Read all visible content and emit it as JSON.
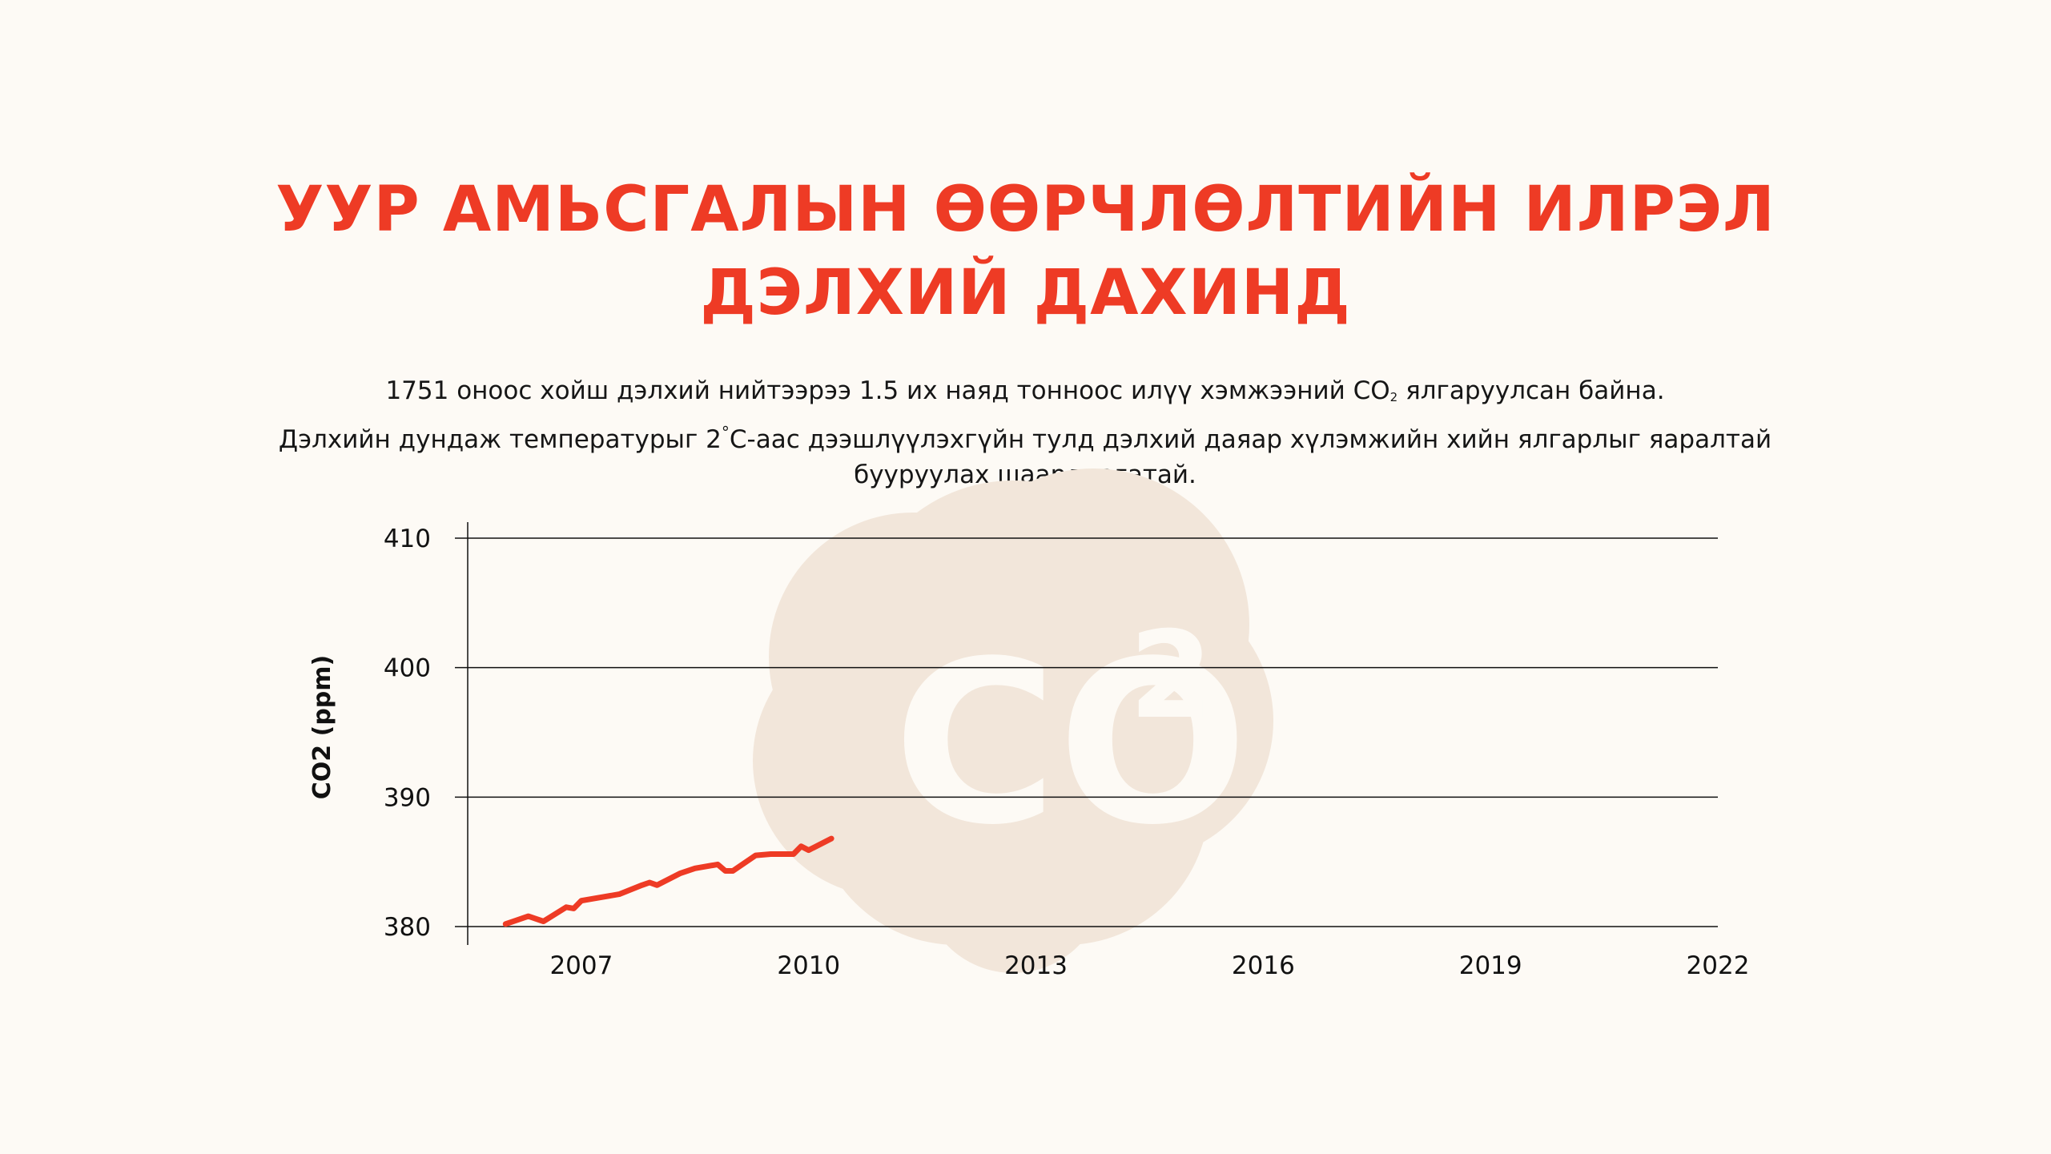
{
  "title": {
    "line1": "УУР АМЬСГАЛЫН ӨӨРЧЛӨЛТИЙН ИЛРЭЛ",
    "line2": "ДЭЛХИЙ ДАХИНД"
  },
  "description": {
    "line1_a": "1751 оноос хойш дэлхий нийтээрээ 1.5 их наяд тонноос илүү хэмжээний CO",
    "line1_sub": "2",
    "line1_b": " ялгаруулсан байна.",
    "line2_a": "Дэлхийн дундаж температурыг 2",
    "line2_deg": "°",
    "line2_b": "C-аас дээшлүүлэхгүйн тулд дэлхий даяар хүлэмжийн хийн ялгарлыг яаралтай",
    "line3": "бууруулах шаардлагатай."
  },
  "watermark": {
    "text": "CO",
    "superscript": "2",
    "icon": "cloud-icon",
    "color": "#f2e6da"
  },
  "colors": {
    "accent": "#ee3b25",
    "background": "#fdfaf5",
    "text": "#161616"
  },
  "chart_data": {
    "type": "line",
    "ylabel": "CO2 (ppm)",
    "xlabel": "",
    "xlim": [
      2005.5,
      2022
    ],
    "ylim": [
      380,
      410
    ],
    "x_ticks": [
      2007,
      2010,
      2013,
      2016,
      2019,
      2022
    ],
    "y_ticks": [
      380,
      390,
      400,
      410
    ],
    "grid": "horizontal",
    "series": [
      {
        "color": "#ee3b25",
        "x": [
          2006.0,
          2006.3,
          2006.5,
          2006.8,
          2006.9,
          2007.0,
          2007.3,
          2007.5,
          2007.8,
          2007.9,
          2008.0,
          2008.3,
          2008.5,
          2008.8,
          2008.9,
          2009.0,
          2009.3,
          2009.5,
          2009.8,
          2009.9,
          2010.0,
          2010.3
        ],
        "y": [
          380.2,
          380.8,
          380.4,
          381.5,
          381.4,
          382.0,
          382.3,
          382.5,
          383.2,
          383.4,
          383.2,
          384.1,
          384.5,
          384.8,
          384.3,
          384.3,
          385.5,
          385.6,
          385.6,
          386.2,
          385.9,
          386.8
        ]
      }
    ]
  }
}
